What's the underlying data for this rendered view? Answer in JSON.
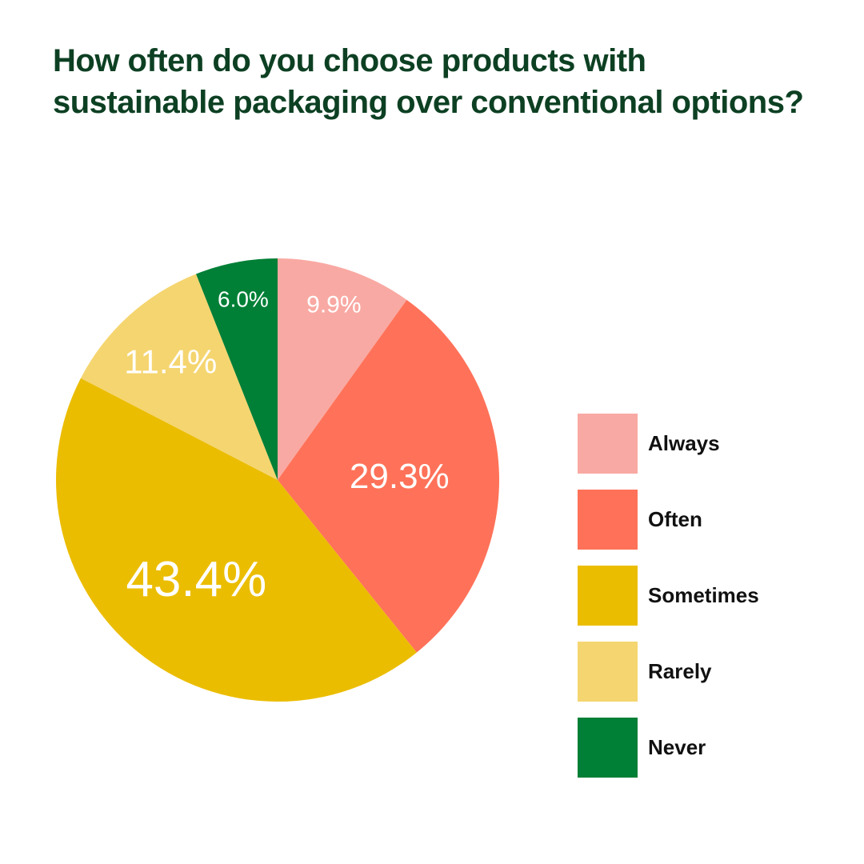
{
  "title": {
    "line1": "How often do you choose products with",
    "line2": "sustainable packaging over conventional options?"
  },
  "chart_data": {
    "type": "pie",
    "title": "How often do you choose products with sustainable packaging over conventional options?",
    "categories": [
      "Always",
      "Often",
      "Sometimes",
      "Rarely",
      "Never"
    ],
    "values": [
      9.9,
      29.3,
      43.4,
      11.4,
      6.0
    ],
    "labels": [
      "9.9%",
      "29.3%",
      "43.4%",
      "11.4%",
      "6.0%"
    ],
    "colors": [
      "#f9a9a3",
      "#ff7259",
      "#ebbd00",
      "#f5d570",
      "#007f36"
    ],
    "start_angle": "12 o'clock",
    "direction": "clockwise",
    "legend_position": "right"
  },
  "legend": {
    "items": [
      {
        "label": "Always",
        "color": "#f9a9a3"
      },
      {
        "label": "Often",
        "color": "#ff7259"
      },
      {
        "label": "Sometimes",
        "color": "#ebbd00"
      },
      {
        "label": "Rarely",
        "color": "#f5d570"
      },
      {
        "label": "Never",
        "color": "#007f36"
      }
    ]
  }
}
